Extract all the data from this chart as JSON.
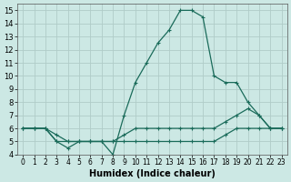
{
  "xlabel": "Humidex (Indice chaleur)",
  "xlim": [
    -0.5,
    23.5
  ],
  "ylim": [
    4,
    15.5
  ],
  "xticks": [
    0,
    1,
    2,
    3,
    4,
    5,
    6,
    7,
    8,
    9,
    10,
    11,
    12,
    13,
    14,
    15,
    16,
    17,
    18,
    19,
    20,
    21,
    22,
    23
  ],
  "yticks": [
    4,
    5,
    6,
    7,
    8,
    9,
    10,
    11,
    12,
    13,
    14,
    15
  ],
  "bg_color": "#cce8e4",
  "grid_color": "#b0ccc8",
  "line_color": "#1a6b5a",
  "lines": [
    {
      "x": [
        0,
        1,
        2,
        3,
        4,
        5,
        6,
        7,
        8,
        9,
        10,
        11,
        12,
        13,
        14,
        15,
        16,
        17,
        18,
        19,
        20,
        21,
        22,
        23
      ],
      "y": [
        6,
        6,
        6,
        5.5,
        5,
        5,
        5,
        5,
        5,
        5.5,
        6,
        6,
        6,
        6,
        6,
        6,
        6,
        6,
        6.5,
        7,
        7.5,
        7,
        6,
        6
      ]
    },
    {
      "x": [
        0,
        1,
        2,
        3,
        4,
        5,
        6,
        7,
        8,
        9,
        10,
        11,
        12,
        13,
        14,
        15,
        16,
        17,
        18,
        19,
        20,
        21,
        22,
        23
      ],
      "y": [
        6,
        6,
        6,
        5,
        5,
        5,
        5,
        5,
        5,
        5,
        5,
        5,
        5,
        5,
        5,
        5,
        5,
        5,
        5.5,
        6,
        6,
        6,
        6,
        6
      ]
    },
    {
      "x": [
        0,
        1,
        2,
        3,
        4,
        5,
        6,
        7,
        8,
        9,
        10,
        11,
        12,
        13,
        14,
        15,
        16,
        17,
        18,
        19,
        20,
        21,
        22,
        23
      ],
      "y": [
        6,
        6,
        6,
        5,
        4.5,
        5,
        5,
        5,
        4,
        7,
        9.5,
        11,
        12.5,
        13.5,
        15,
        15,
        14.5,
        10,
        9.5,
        9.5,
        8,
        7,
        6,
        6
      ]
    }
  ]
}
